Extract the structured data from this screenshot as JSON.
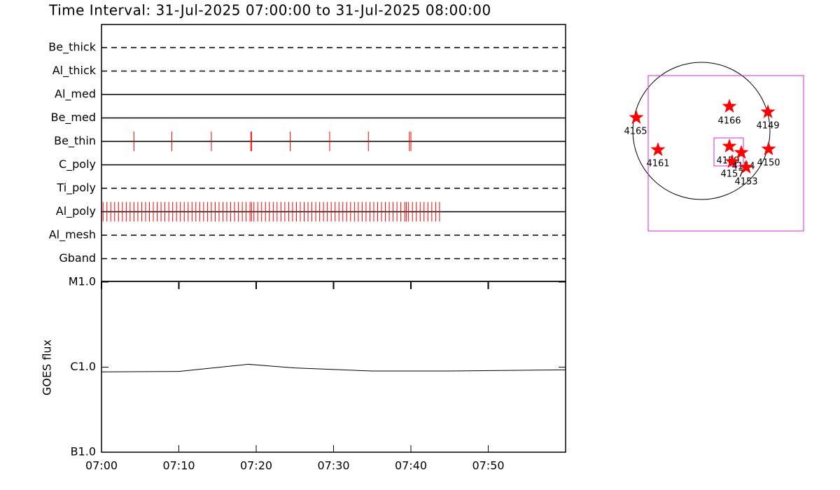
{
  "chart_data": [
    {
      "type": "timeline",
      "title": "Time Interval: 31-Jul-2025 07:00:00 to 31-Jul-2025 08:00:00",
      "xlim": [
        0,
        60
      ],
      "color": "#ff0000",
      "rows": [
        {
          "name": "Be_thick",
          "style": "dashed",
          "x": []
        },
        {
          "name": "Al_thick",
          "style": "dashed",
          "x": []
        },
        {
          "name": "Al_med",
          "style": "solid",
          "x": []
        },
        {
          "name": "Be_med",
          "style": "solid",
          "x": []
        },
        {
          "name": "Be_thin",
          "style": "solid",
          "x": [
            4.2,
            9.1,
            14.2,
            19.3,
            19.4,
            24.4,
            29.5,
            34.5,
            39.8,
            40.0
          ]
        },
        {
          "name": "C_poly",
          "style": "solid",
          "x": []
        },
        {
          "name": "Ti_poly",
          "style": "dashed",
          "x": []
        },
        {
          "name": "Al_poly",
          "style": "solid",
          "x": [
            0.2,
            0.7,
            1.2,
            1.7,
            2.2,
            2.7,
            3.2,
            3.7,
            4.2,
            4.7,
            5.2,
            5.7,
            6.2,
            6.7,
            7.2,
            7.7,
            8.2,
            8.7,
            9.2,
            9.7,
            10.2,
            10.7,
            11.2,
            11.7,
            12.2,
            12.7,
            13.2,
            13.7,
            14.2,
            14.7,
            15.2,
            15.7,
            16.2,
            16.7,
            17.2,
            17.7,
            18.2,
            18.7,
            19.2,
            19.4,
            19.7,
            20.2,
            20.7,
            21.2,
            21.7,
            22.2,
            22.7,
            23.2,
            23.7,
            24.2,
            24.7,
            25.2,
            25.7,
            26.2,
            26.7,
            27.2,
            27.7,
            28.2,
            28.7,
            29.2,
            29.7,
            30.2,
            30.7,
            31.2,
            31.7,
            32.2,
            32.7,
            33.2,
            33.7,
            34.2,
            34.7,
            35.2,
            35.7,
            36.2,
            36.7,
            37.2,
            37.7,
            38.2,
            38.7,
            39.2,
            39.4,
            39.7,
            40.2,
            40.7,
            41.2,
            41.7,
            42.2,
            42.7,
            43.2,
            43.7
          ]
        },
        {
          "name": "Al_mesh",
          "style": "dashed",
          "x": []
        },
        {
          "name": "Gband",
          "style": "dashed",
          "x": []
        }
      ]
    },
    {
      "type": "line",
      "ylabel": "GOES flux",
      "log": true,
      "color": "#000000",
      "x": [
        0,
        10,
        19,
        25,
        35,
        45,
        55,
        60
      ],
      "values": [
        8.8e-07,
        8.9e-07,
        1.08e-06,
        9.8e-07,
        9e-07,
        9e-07,
        9.2e-07,
        9.3e-07
      ],
      "xlim": [
        0,
        60
      ],
      "xticks": [
        {
          "value": 0,
          "label": "07:00"
        },
        {
          "value": 10,
          "label": "07:10"
        },
        {
          "value": 20,
          "label": "07:20"
        },
        {
          "value": 30,
          "label": "07:30"
        },
        {
          "value": 40,
          "label": "07:40"
        },
        {
          "value": 50,
          "label": "07:50"
        }
      ],
      "ylim": [
        1e-07,
        1e-05
      ],
      "yticks": [
        {
          "value": 1e-07,
          "label": "B1.0"
        },
        {
          "value": 1e-06,
          "label": "C1.0"
        },
        {
          "value": 1e-05,
          "label": "M1.0"
        }
      ]
    },
    {
      "type": "map",
      "star_color": "#ff0000",
      "box_color": "#e020e0",
      "labels": [
        "4165",
        "4161",
        "4166",
        "4149",
        "4150",
        "4159",
        "4157",
        "4154",
        "4153"
      ]
    }
  ]
}
